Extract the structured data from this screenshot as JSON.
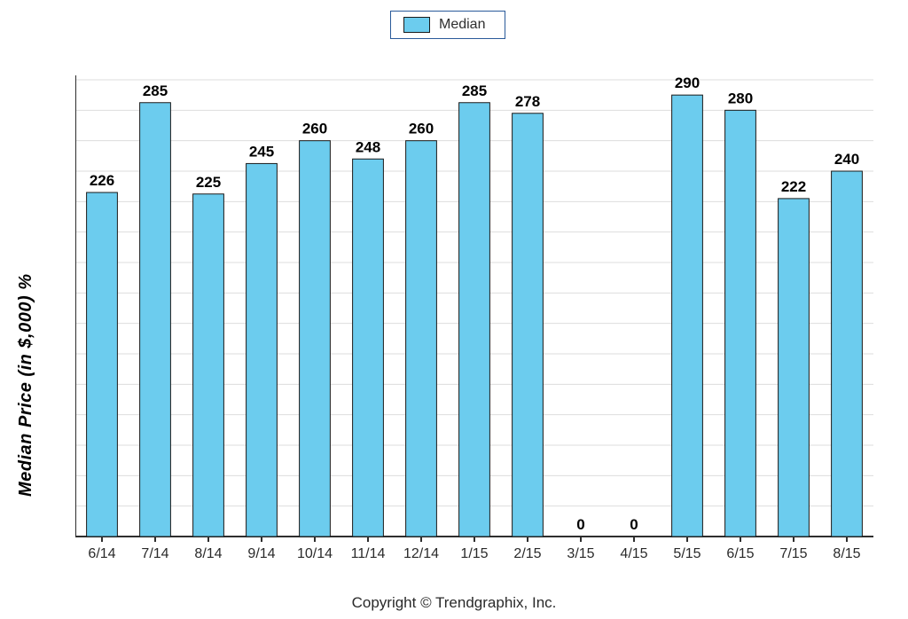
{
  "legend": {
    "label": "Median"
  },
  "chart": {
    "type": "bar",
    "ylabel": "Median Price (in $,000) %",
    "ylim": [
      0,
      300
    ],
    "ytick_step": 20,
    "bar_fill": "#6cccee",
    "bar_stroke": "#1a1a1a",
    "legend_border": "#2a5a9a",
    "grid_color": "#dddddd",
    "axis_color": "#2e2e2e",
    "background": "#ffffff",
    "label_fontsize": 16,
    "title_fontsize": 16,
    "bar_width_ratio": 0.58,
    "categories": [
      "6/14",
      "7/14",
      "8/14",
      "9/14",
      "10/14",
      "11/14",
      "12/14",
      "1/15",
      "2/15",
      "3/15",
      "4/15",
      "5/15",
      "6/15",
      "7/15",
      "8/15"
    ],
    "values": [
      226,
      285,
      225,
      245,
      260,
      248,
      260,
      285,
      278,
      0,
      0,
      290,
      280,
      222,
      240
    ]
  },
  "copyright": "Copyright © Trendgraphix, Inc."
}
